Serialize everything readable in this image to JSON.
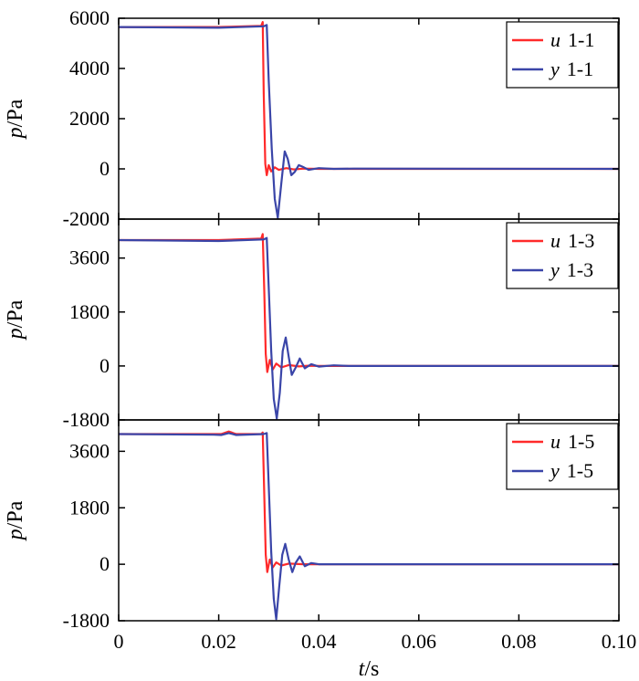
{
  "colors": {
    "u": "#ff2a2a",
    "y": "#3a45a8",
    "axis": "#000000",
    "background": "#ffffff"
  },
  "chart_data": [
    {
      "type": "line",
      "ylabel": "p/Pa",
      "ylabel_var": "p",
      "ylabel_unit": "/Pa",
      "xlim": [
        0,
        0.1
      ],
      "ylim": [
        -2000,
        6000
      ],
      "yticks": [
        -2000,
        0,
        2000,
        4000,
        6000
      ],
      "ytick_labels": [
        "-2000",
        "0",
        "2000",
        "4000",
        "6000"
      ],
      "legend_position": "top-right",
      "series": [
        {
          "name": "u 1-1",
          "var": "u",
          "station": "1-1",
          "color": "#ff2a2a",
          "points": [
            [
              0,
              5650
            ],
            [
              0.02,
              5650
            ],
            [
              0.0285,
              5700
            ],
            [
              0.0288,
              5850
            ],
            [
              0.029,
              3000
            ],
            [
              0.0293,
              200
            ],
            [
              0.0296,
              -250
            ],
            [
              0.03,
              150
            ],
            [
              0.0305,
              -100
            ],
            [
              0.0312,
              60
            ],
            [
              0.032,
              -40
            ],
            [
              0.0335,
              30
            ],
            [
              0.035,
              -20
            ],
            [
              0.037,
              10
            ],
            [
              0.04,
              0
            ],
            [
              0.1,
              0
            ]
          ]
        },
        {
          "name": "y 1-1",
          "var": "y",
          "station": "1-1",
          "color": "#3a45a8",
          "points": [
            [
              0,
              5650
            ],
            [
              0.02,
              5620
            ],
            [
              0.029,
              5680
            ],
            [
              0.0296,
              5730
            ],
            [
              0.03,
              3500
            ],
            [
              0.0306,
              800
            ],
            [
              0.0312,
              -1200
            ],
            [
              0.0318,
              -1950
            ],
            [
              0.0325,
              -600
            ],
            [
              0.0332,
              700
            ],
            [
              0.0338,
              400
            ],
            [
              0.0345,
              -250
            ],
            [
              0.0352,
              -120
            ],
            [
              0.036,
              150
            ],
            [
              0.037,
              60
            ],
            [
              0.038,
              -40
            ],
            [
              0.04,
              30
            ],
            [
              0.043,
              0
            ],
            [
              0.047,
              10
            ],
            [
              0.1,
              0
            ]
          ]
        }
      ]
    },
    {
      "type": "line",
      "ylabel": "p/Pa",
      "ylabel_var": "p",
      "ylabel_unit": "/Pa",
      "xlim": [
        0,
        0.1
      ],
      "ylim": [
        -1800,
        4900
      ],
      "yticks": [
        -1800,
        0,
        1800,
        3600
      ],
      "ytick_labels": [
        "-1800",
        "0",
        "1800",
        "3600"
      ],
      "legend_position": "top-right",
      "series": [
        {
          "name": "u 1-3",
          "var": "u",
          "station": "1-3",
          "color": "#ff2a2a",
          "points": [
            [
              0,
              4200
            ],
            [
              0.02,
              4200
            ],
            [
              0.0285,
              4250
            ],
            [
              0.0288,
              4400
            ],
            [
              0.0291,
              2500
            ],
            [
              0.0294,
              400
            ],
            [
              0.0297,
              -200
            ],
            [
              0.0302,
              200
            ],
            [
              0.0308,
              -120
            ],
            [
              0.0315,
              80
            ],
            [
              0.0325,
              -50
            ],
            [
              0.034,
              30
            ],
            [
              0.036,
              -15
            ],
            [
              0.038,
              10
            ],
            [
              0.04,
              0
            ],
            [
              0.1,
              0
            ]
          ]
        },
        {
          "name": "y 1-3",
          "var": "y",
          "station": "1-3",
          "color": "#3a45a8",
          "points": [
            [
              0,
              4200
            ],
            [
              0.02,
              4170
            ],
            [
              0.029,
              4220
            ],
            [
              0.0296,
              4270
            ],
            [
              0.03,
              2600
            ],
            [
              0.0305,
              500
            ],
            [
              0.031,
              -1100
            ],
            [
              0.0316,
              -1750
            ],
            [
              0.0322,
              -900
            ],
            [
              0.0328,
              500
            ],
            [
              0.0334,
              950
            ],
            [
              0.034,
              300
            ],
            [
              0.0346,
              -300
            ],
            [
              0.0354,
              -50
            ],
            [
              0.0362,
              250
            ],
            [
              0.0372,
              -80
            ],
            [
              0.0385,
              60
            ],
            [
              0.04,
              -20
            ],
            [
              0.043,
              20
            ],
            [
              0.046,
              0
            ],
            [
              0.1,
              0
            ]
          ]
        }
      ]
    },
    {
      "type": "line",
      "ylabel": "p/Pa",
      "ylabel_var": "p",
      "ylabel_unit": "/Pa",
      "xlim": [
        0,
        0.1
      ],
      "ylim": [
        -1800,
        4600
      ],
      "yticks": [
        -1800,
        0,
        1800,
        3600
      ],
      "ytick_labels": [
        "-1800",
        "0",
        "1800",
        "3600"
      ],
      "xticks": [
        0,
        0.02,
        0.04,
        0.06,
        0.08,
        0.1
      ],
      "xtick_labels": [
        "0",
        "0.02",
        "0.04",
        "0.06",
        "0.08",
        "0.10"
      ],
      "xlabel": "t/s",
      "xlabel_var": "t",
      "xlabel_unit": "/s",
      "legend_position": "top-right",
      "series": [
        {
          "name": "u 1-5",
          "var": "u",
          "station": "1-5",
          "color": "#ff2a2a",
          "points": [
            [
              0,
              4150
            ],
            [
              0.019,
              4150
            ],
            [
              0.0205,
              4150
            ],
            [
              0.022,
              4230
            ],
            [
              0.0235,
              4150
            ],
            [
              0.0285,
              4150
            ],
            [
              0.0288,
              4200
            ],
            [
              0.0291,
              2200
            ],
            [
              0.0294,
              300
            ],
            [
              0.0297,
              -250
            ],
            [
              0.0302,
              150
            ],
            [
              0.0308,
              -100
            ],
            [
              0.0315,
              60
            ],
            [
              0.0325,
              -40
            ],
            [
              0.034,
              20
            ],
            [
              0.037,
              0
            ],
            [
              0.1,
              0
            ]
          ]
        },
        {
          "name": "y 1-5",
          "var": "y",
          "station": "1-5",
          "color": "#3a45a8",
          "points": [
            [
              0,
              4150
            ],
            [
              0.019,
              4130
            ],
            [
              0.0205,
              4120
            ],
            [
              0.022,
              4180
            ],
            [
              0.0235,
              4120
            ],
            [
              0.029,
              4150
            ],
            [
              0.0296,
              4180
            ],
            [
              0.03,
              2500
            ],
            [
              0.0305,
              400
            ],
            [
              0.031,
              -1100
            ],
            [
              0.0315,
              -1750
            ],
            [
              0.0321,
              -700
            ],
            [
              0.0327,
              300
            ],
            [
              0.0333,
              650
            ],
            [
              0.034,
              150
            ],
            [
              0.0347,
              -250
            ],
            [
              0.0354,
              50
            ],
            [
              0.0362,
              250
            ],
            [
              0.0372,
              -60
            ],
            [
              0.0385,
              40
            ],
            [
              0.04,
              0
            ],
            [
              0.1,
              0
            ]
          ]
        }
      ]
    }
  ]
}
